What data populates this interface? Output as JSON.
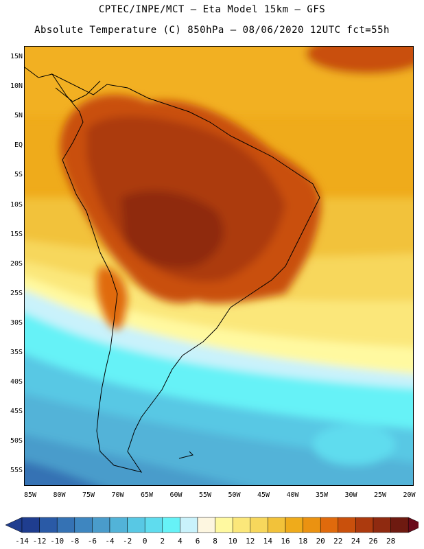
{
  "title_line1": "CPTEC/INPE/MCT –  Eta Model 15km – GFS",
  "title_line2": "Absolute Temperature (C) 850hPa – 08/06/2020 12UTC fct=55h",
  "lat_labels": [
    "15N",
    "10N",
    "5N",
    "EQ",
    "5S",
    "10S",
    "15S",
    "20S",
    "25S",
    "30S",
    "35S",
    "40S",
    "45S",
    "50S",
    "55S"
  ],
  "lon_labels": [
    "85W",
    "80W",
    "75W",
    "70W",
    "65W",
    "60W",
    "55W",
    "50W",
    "45W",
    "40W",
    "35W",
    "30W",
    "25W",
    "20W"
  ],
  "colorbar": {
    "labels": [
      "-14",
      "-12",
      "-10",
      "-8",
      "-6",
      "-4",
      "-2",
      "0",
      "2",
      "4",
      "6",
      "8",
      "10",
      "12",
      "14",
      "16",
      "18",
      "20",
      "22",
      "24",
      "26",
      "28"
    ],
    "colors": [
      "#1f3d8f",
      "#2a5aa6",
      "#3572b4",
      "#3e86c0",
      "#4a9ccb",
      "#52b3d8",
      "#58c8e4",
      "#5fdcee",
      "#66f2f7",
      "#c9f2fb",
      "#fdf6e0",
      "#fff9a0",
      "#fbe77a",
      "#f7d75c",
      "#f2c23a",
      "#efab1b",
      "#eb9211",
      "#e06a0c",
      "#c9500c",
      "#ac3a0e",
      "#8f2a10",
      "#6e1a10"
    ]
  }
}
